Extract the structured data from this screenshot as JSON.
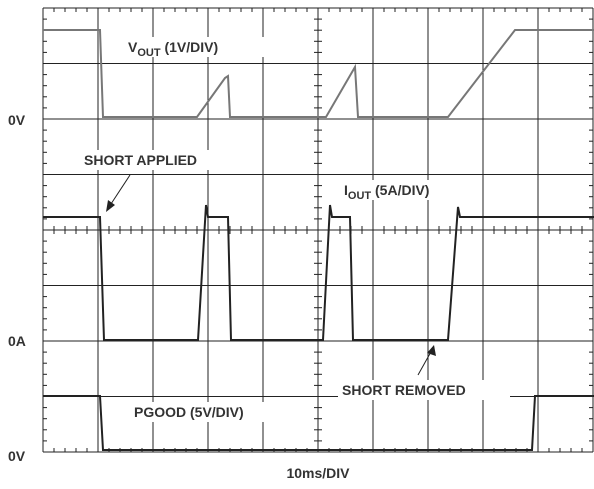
{
  "labels": {
    "vout_zero": "0V",
    "iout_zero": "0A",
    "pgood_zero": "0V",
    "timebase": "10ms/DIV"
  },
  "traces": {
    "vout": {
      "prefix": "V",
      "sub": "OUT",
      "scale": " (1V/DIV)"
    },
    "iout": {
      "prefix": "I",
      "sub": "OUT",
      "scale": " (5A/DIV)"
    },
    "pgood": {
      "label": "PGOOD (5V/DIV)"
    }
  },
  "annotations": {
    "short_applied": "SHORT APPLIED",
    "short_removed": "SHORT REMOVED"
  }
}
